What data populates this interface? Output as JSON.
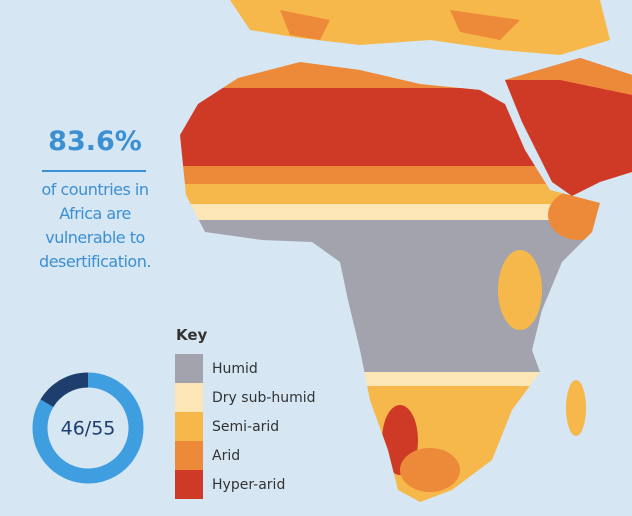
{
  "stat": "83.6%",
  "description": "of countries in Africa are vulnerable to desertification.",
  "donut": {
    "label": "46/55",
    "value": 46,
    "total": 55,
    "color": "#3f9ee0",
    "rest_color": "#1e3e6e"
  },
  "legend": {
    "title": "Key",
    "items": [
      {
        "label": "Humid",
        "color": "#a2a3ad"
      },
      {
        "label": "Dry sub-humid",
        "color": "#fde6b5"
      },
      {
        "label": "Semi-arid",
        "color": "#f6b84a"
      },
      {
        "label": "Arid",
        "color": "#ec8a3a"
      },
      {
        "label": "Hyper-arid",
        "color": "#cf3a26"
      }
    ]
  }
}
